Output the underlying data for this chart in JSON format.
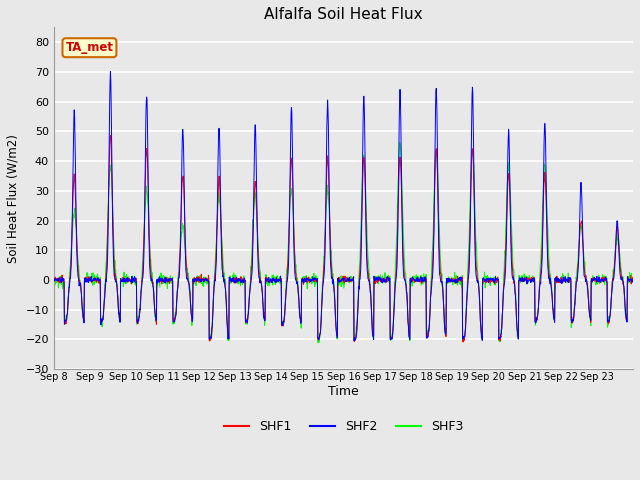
{
  "title": "Alfalfa Soil Heat Flux",
  "xlabel": "Time",
  "ylabel": "Soil Heat Flux (W/m2)",
  "ylim": [
    -30,
    85
  ],
  "yticks": [
    -30,
    -20,
    -10,
    0,
    10,
    20,
    30,
    40,
    50,
    60,
    70,
    80
  ],
  "bg_color": "#e8e8e8",
  "plot_bg_color": "#e8e8e8",
  "grid_color": "white",
  "annotation_text": "TA_met",
  "annotation_bg": "#ffffcc",
  "annotation_border": "#cc6600",
  "annotation_text_color": "#cc0000",
  "line_colors": [
    "red",
    "blue",
    "lime"
  ],
  "line_labels": [
    "SHF1",
    "SHF2",
    "SHF3"
  ],
  "x_tick_labels": [
    "Sep 8",
    "Sep 9",
    "Sep 10",
    "Sep 11",
    "Sep 12",
    "Sep 13",
    "Sep 14",
    "Sep 15",
    "Sep 16",
    "Sep 17",
    "Sep 18",
    "Sep 19",
    "Sep 20",
    "Sep 21",
    "Sep 22",
    "Sep 23"
  ],
  "n_days": 16,
  "samples_per_day": 96,
  "peak_shf1": [
    35,
    49,
    44,
    35,
    34,
    33,
    41,
    41,
    41,
    41,
    44,
    44,
    36,
    35,
    20,
    18
  ],
  "peak_shf2": [
    57,
    70,
    63,
    51,
    52,
    52,
    58,
    60,
    62,
    63,
    65,
    65,
    50,
    53,
    33,
    20
  ],
  "peak_shf3": [
    23,
    38,
    30,
    18,
    28,
    28,
    30,
    30,
    42,
    46,
    44,
    44,
    39,
    39,
    18,
    15
  ],
  "night_min_shf1": [
    -14,
    -14,
    -14,
    -14,
    -20,
    -14,
    -15,
    -20,
    -20,
    -20,
    -19,
    -20,
    -20,
    -14,
    -14,
    -14
  ],
  "night_min_shf2": [
    -14,
    -14,
    -14,
    -14,
    -20,
    -14,
    -15,
    -20,
    -20,
    -20,
    -19,
    -20,
    -20,
    -14,
    -14,
    -14
  ],
  "night_min_shf3": [
    -14,
    -14,
    -14,
    -14,
    -20,
    -14,
    -15,
    -20,
    -20,
    -20,
    -19,
    -20,
    -20,
    -14,
    -14,
    -14
  ]
}
